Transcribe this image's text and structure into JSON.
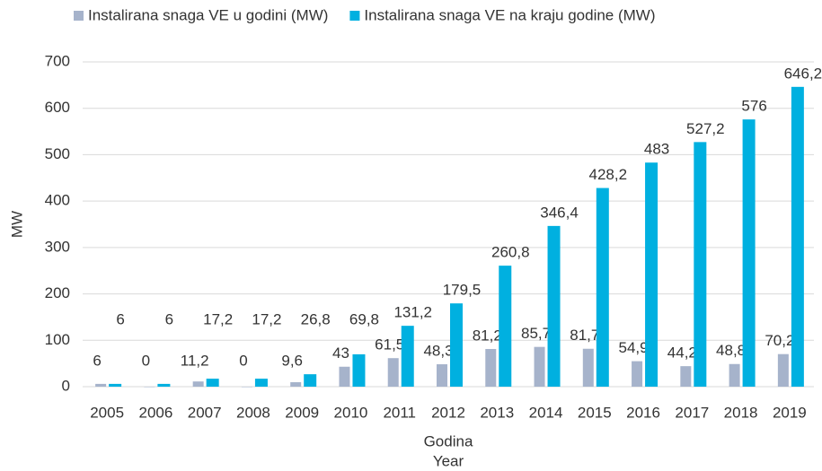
{
  "chart_data": {
    "type": "bar",
    "categories": [
      "2005",
      "2006",
      "2007",
      "2008",
      "2009",
      "2010",
      "2011",
      "2012",
      "2013",
      "2014",
      "2015",
      "2016",
      "2017",
      "2018",
      "2019"
    ],
    "series": [
      {
        "name": "Instalirana snaga VE u godini (MW)",
        "color": "#a6b3cb",
        "values": [
          6,
          0,
          11.2,
          0,
          9.6,
          43,
          61.5,
          48.3,
          81.2,
          85.7,
          81.7,
          54.9,
          44.2,
          48.8,
          70.2
        ],
        "value_labels": [
          "6",
          "0",
          "11,2",
          "0",
          "9,6",
          "43",
          "61,5",
          "48,3",
          "81,2",
          "85,7",
          "81,7",
          "54,9",
          "44,2",
          "48,8",
          "70,2"
        ]
      },
      {
        "name": "Instalirana snaga VE na kraju godine (MW)",
        "color": "#00b0e0",
        "values": [
          6,
          6,
          17.2,
          17.2,
          26.8,
          69.8,
          131.2,
          179.5,
          260.8,
          346.4,
          428.2,
          483,
          527.2,
          576,
          646.2
        ],
        "value_labels": [
          "6",
          "6",
          "17,2",
          "17,2",
          "26,8",
          "69,8",
          "131,2",
          "179,5",
          "260,8",
          "346,4",
          "428,2",
          "483",
          "527,2",
          "576",
          "646,2"
        ]
      }
    ],
    "xlabel": [
      "Godina",
      "Year"
    ],
    "ylabel": "MW",
    "ylim": [
      0,
      700
    ],
    "yticks": [
      0,
      100,
      200,
      300,
      400,
      500,
      600,
      700
    ],
    "grid": true,
    "legend": "top-left"
  }
}
